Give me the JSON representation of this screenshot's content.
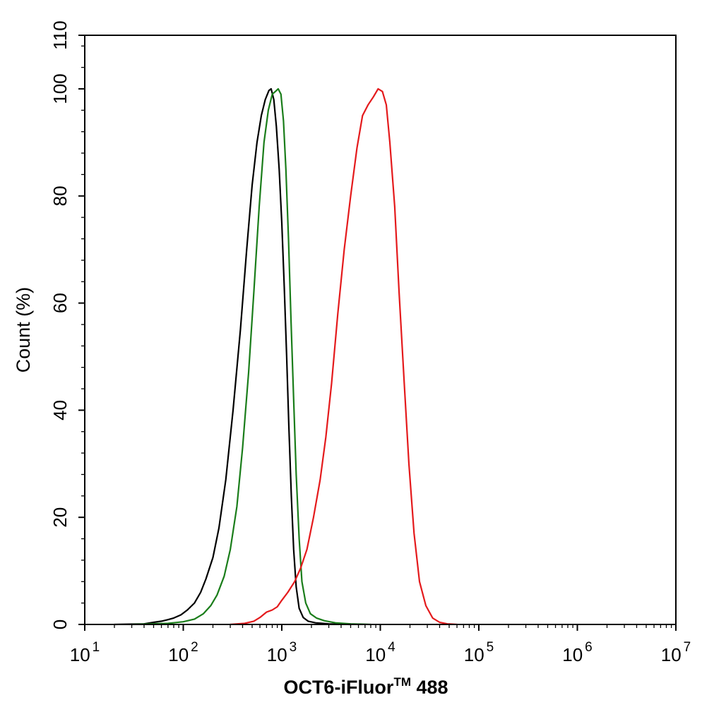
{
  "chart_data": {
    "type": "line",
    "title": "",
    "xlabel": "OCT6-iFluor",
    "xlabel_sup": "TM",
    "xlabel_suffix": " 488",
    "ylabel": "Count  (%)",
    "x_scale": "log",
    "xlim": [
      10,
      10000000
    ],
    "ylim": [
      0,
      110
    ],
    "x_ticks": [
      {
        "value": 10,
        "base": "10",
        "exp": "1"
      },
      {
        "value": 100,
        "base": "10",
        "exp": "2"
      },
      {
        "value": 1000,
        "base": "10",
        "exp": "3"
      },
      {
        "value": 10000,
        "base": "10",
        "exp": "4"
      },
      {
        "value": 100000,
        "base": "10",
        "exp": "5"
      },
      {
        "value": 1000000,
        "base": "10",
        "exp": "6"
      },
      {
        "value": 10000000,
        "base": "10",
        "exp": "7"
      }
    ],
    "y_ticks": [
      {
        "value": 0,
        "label": "0"
      },
      {
        "value": 20,
        "label": "20"
      },
      {
        "value": 40,
        "label": "40"
      },
      {
        "value": 60,
        "label": "60"
      },
      {
        "value": 80,
        "label": "80"
      },
      {
        "value": 100,
        "label": "100"
      },
      {
        "value": 110,
        "label": "110"
      }
    ],
    "grid": false,
    "series": [
      {
        "color": "#000000",
        "points": [
          [
            20,
            0
          ],
          [
            40,
            0.1
          ],
          [
            50,
            0.4
          ],
          [
            60,
            0.6
          ],
          [
            70,
            0.9
          ],
          [
            80,
            1.2
          ],
          [
            95,
            1.8
          ],
          [
            110,
            2.7
          ],
          [
            130,
            4
          ],
          [
            150,
            6
          ],
          [
            170,
            8.5
          ],
          [
            200,
            12.5
          ],
          [
            230,
            18
          ],
          [
            270,
            27
          ],
          [
            320,
            40
          ],
          [
            380,
            55
          ],
          [
            440,
            70
          ],
          [
            500,
            82
          ],
          [
            560,
            90
          ],
          [
            620,
            95
          ],
          [
            680,
            98
          ],
          [
            740,
            99.7
          ],
          [
            780,
            100
          ],
          [
            830,
            98
          ],
          [
            880,
            93
          ],
          [
            940,
            85
          ],
          [
            1000,
            75
          ],
          [
            1060,
            63
          ],
          [
            1120,
            50
          ],
          [
            1180,
            37
          ],
          [
            1250,
            24
          ],
          [
            1320,
            14
          ],
          [
            1400,
            7
          ],
          [
            1500,
            3
          ],
          [
            1650,
            1.3
          ],
          [
            1850,
            0.6
          ],
          [
            2200,
            0.3
          ],
          [
            3000,
            0.1
          ],
          [
            5000,
            0
          ]
        ]
      },
      {
        "color": "#1a7d1a",
        "points": [
          [
            30,
            0
          ],
          [
            70,
            0.2
          ],
          [
            100,
            0.5
          ],
          [
            130,
            1
          ],
          [
            160,
            2
          ],
          [
            190,
            3.5
          ],
          [
            220,
            5.5
          ],
          [
            260,
            9
          ],
          [
            300,
            14
          ],
          [
            350,
            22
          ],
          [
            400,
            33
          ],
          [
            460,
            47
          ],
          [
            520,
            62
          ],
          [
            590,
            78
          ],
          [
            660,
            90
          ],
          [
            730,
            96
          ],
          [
            800,
            99
          ],
          [
            860,
            99.5
          ],
          [
            920,
            100
          ],
          [
            980,
            99
          ],
          [
            1040,
            94
          ],
          [
            1100,
            85
          ],
          [
            1170,
            72
          ],
          [
            1240,
            57
          ],
          [
            1320,
            42
          ],
          [
            1400,
            28
          ],
          [
            1500,
            16
          ],
          [
            1600,
            8
          ],
          [
            1750,
            4
          ],
          [
            1950,
            2
          ],
          [
            2250,
            1.2
          ],
          [
            2700,
            0.7
          ],
          [
            3500,
            0.3
          ],
          [
            5000,
            0.1
          ],
          [
            8000,
            0
          ]
        ]
      },
      {
        "color": "#e41a1c",
        "points": [
          [
            300,
            0
          ],
          [
            420,
            0.2
          ],
          [
            520,
            0.6
          ],
          [
            600,
            1.3
          ],
          [
            700,
            2.3
          ],
          [
            800,
            2.7
          ],
          [
            900,
            3.3
          ],
          [
            1000,
            4.5
          ],
          [
            1150,
            6
          ],
          [
            1350,
            8
          ],
          [
            1550,
            10.5
          ],
          [
            1800,
            14
          ],
          [
            2100,
            20
          ],
          [
            2450,
            27
          ],
          [
            2800,
            35
          ],
          [
            3200,
            45
          ],
          [
            3700,
            58
          ],
          [
            4300,
            70
          ],
          [
            5000,
            80
          ],
          [
            5800,
            89
          ],
          [
            6600,
            95
          ],
          [
            7500,
            97
          ],
          [
            8500,
            98.5
          ],
          [
            9500,
            100
          ],
          [
            10500,
            99.5
          ],
          [
            11500,
            97
          ],
          [
            12500,
            90
          ],
          [
            14000,
            78
          ],
          [
            15500,
            62
          ],
          [
            17500,
            45
          ],
          [
            19500,
            30
          ],
          [
            22000,
            17
          ],
          [
            25000,
            8
          ],
          [
            29000,
            3.5
          ],
          [
            34000,
            1.2
          ],
          [
            40000,
            0.4
          ],
          [
            48000,
            0.1
          ],
          [
            60000,
            0
          ]
        ]
      }
    ]
  }
}
